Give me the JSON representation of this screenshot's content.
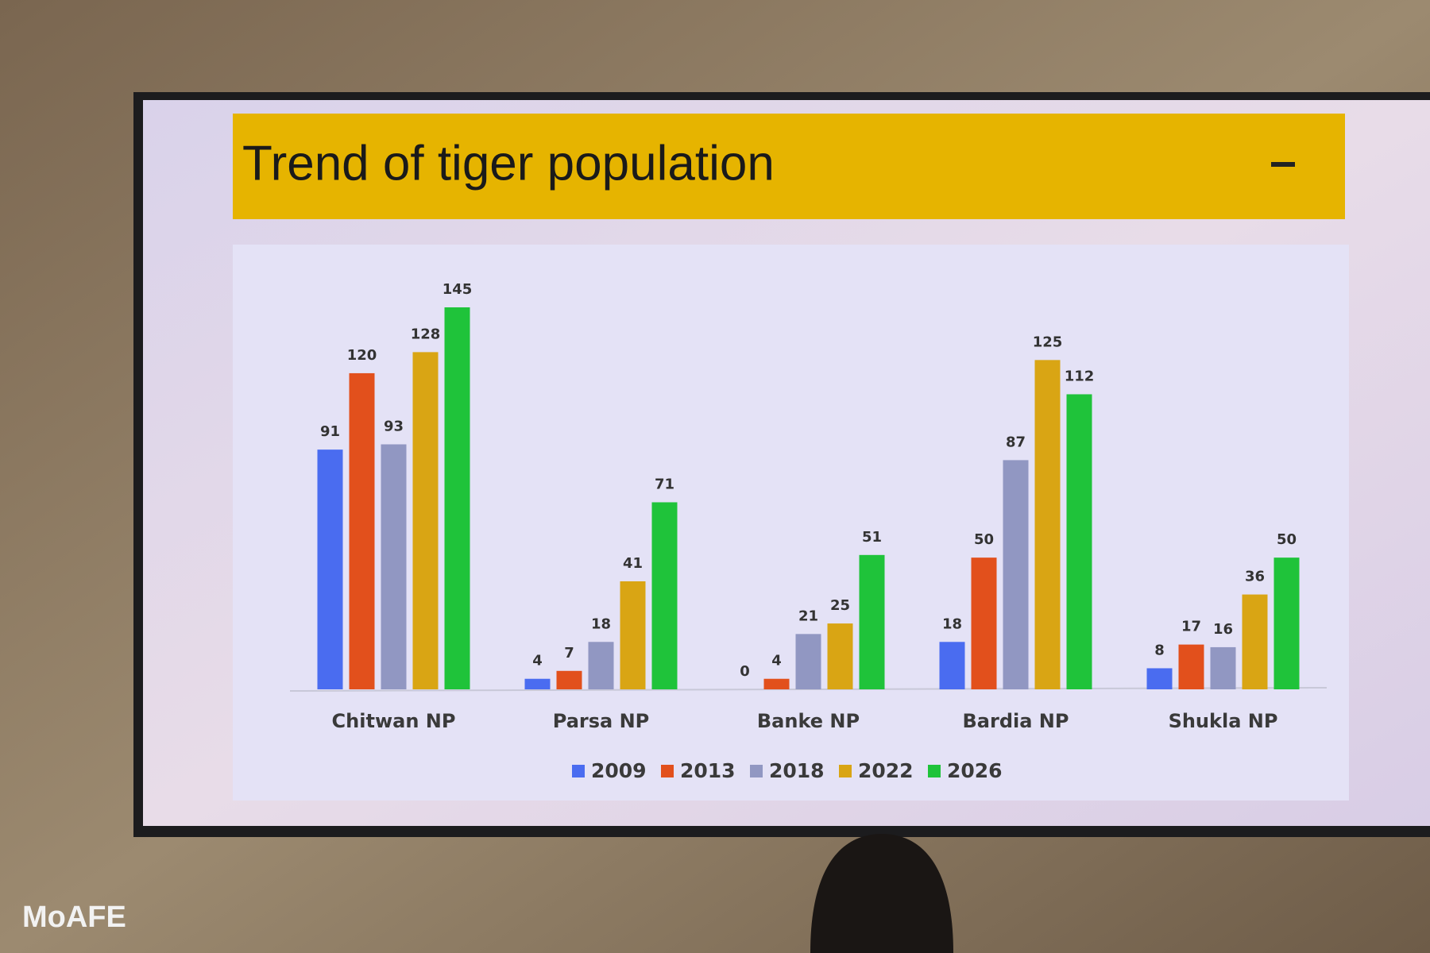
{
  "chart_data": {
    "type": "bar",
    "title": "Trend of tiger population",
    "categories": [
      "Chitwan NP",
      "Parsa NP",
      "Banke NP",
      "Bardia NP",
      "Shukla NP"
    ],
    "series": [
      {
        "name": "2009",
        "color": "#4a6cf0",
        "values": [
          91,
          4,
          0,
          18,
          8
        ]
      },
      {
        "name": "2013",
        "color": "#e2501c",
        "values": [
          120,
          7,
          4,
          50,
          17
        ]
      },
      {
        "name": "2018",
        "color": "#9197c2",
        "values": [
          93,
          18,
          21,
          87,
          16
        ]
      },
      {
        "name": "2022",
        "color": "#d9a514",
        "values": [
          128,
          41,
          25,
          125,
          36
        ]
      },
      {
        "name": "2026",
        "color": "#1fc33a",
        "values": [
          145,
          71,
          51,
          112,
          50
        ]
      }
    ],
    "legend": "bottom",
    "watermark": "MoAFE"
  }
}
